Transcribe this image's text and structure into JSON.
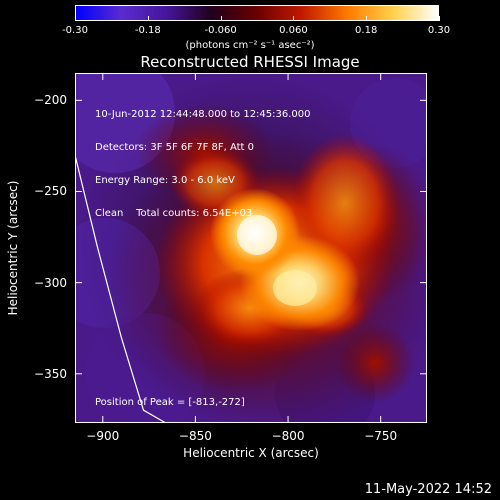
{
  "colorbar": {
    "ticks": [
      "-0.30",
      "-0.18",
      "-0.060",
      "0.060",
      "0.18",
      "0.30"
    ],
    "tick_values": [
      -0.3,
      -0.18,
      -0.06,
      0.06,
      0.18,
      0.3
    ],
    "range": [
      -0.3,
      0.3
    ],
    "colors": [
      "#0000ff",
      "#5b2bd0",
      "#45159a",
      "#20001c",
      "#6a0000",
      "#c21a00",
      "#ff7a00",
      "#ffd14a",
      "#ffffff"
    ]
  },
  "units_label": "(photons cm⁻² s⁻¹ asec⁻²)",
  "timestamp": "11-May-2022 14:52",
  "info": {
    "time_range": "10-Jun-2012 12:44:48.000 to 12:45:36.000",
    "detectors": "Detectors: 3F 5F 6F 7F 8F, Att 0",
    "energy": "Energy Range: 3.0 - 6.0 keV",
    "clean": "Clean",
    "counts": "Total counts: 6.54E+03",
    "peak": "Position of Peak = [-813,-272]"
  },
  "chart_data": {
    "type": "heatmap",
    "title": "Reconstructed RHESSI Image",
    "xlabel": "Heliocentric X (arcsec)",
    "ylabel": "Heliocentric Y (arcsec)",
    "xlim": [
      -915,
      -725
    ],
    "ylim": [
      -377,
      -185
    ],
    "x_ticks": [
      -900,
      -850,
      -800,
      -750
    ],
    "y_ticks": [
      -200,
      -250,
      -300,
      -350
    ],
    "x_tick_labels": [
      "−900",
      "−850",
      "−800",
      "−750"
    ],
    "y_tick_labels": [
      "−200",
      "−250",
      "−300",
      "−350"
    ],
    "peak": [
      -813,
      -272
    ],
    "limb_curve": {
      "x": [
        -915,
        -903,
        -890,
        -878,
        -866
      ],
      "y": [
        -230,
        -280,
        -330,
        -370,
        -377
      ]
    }
  }
}
